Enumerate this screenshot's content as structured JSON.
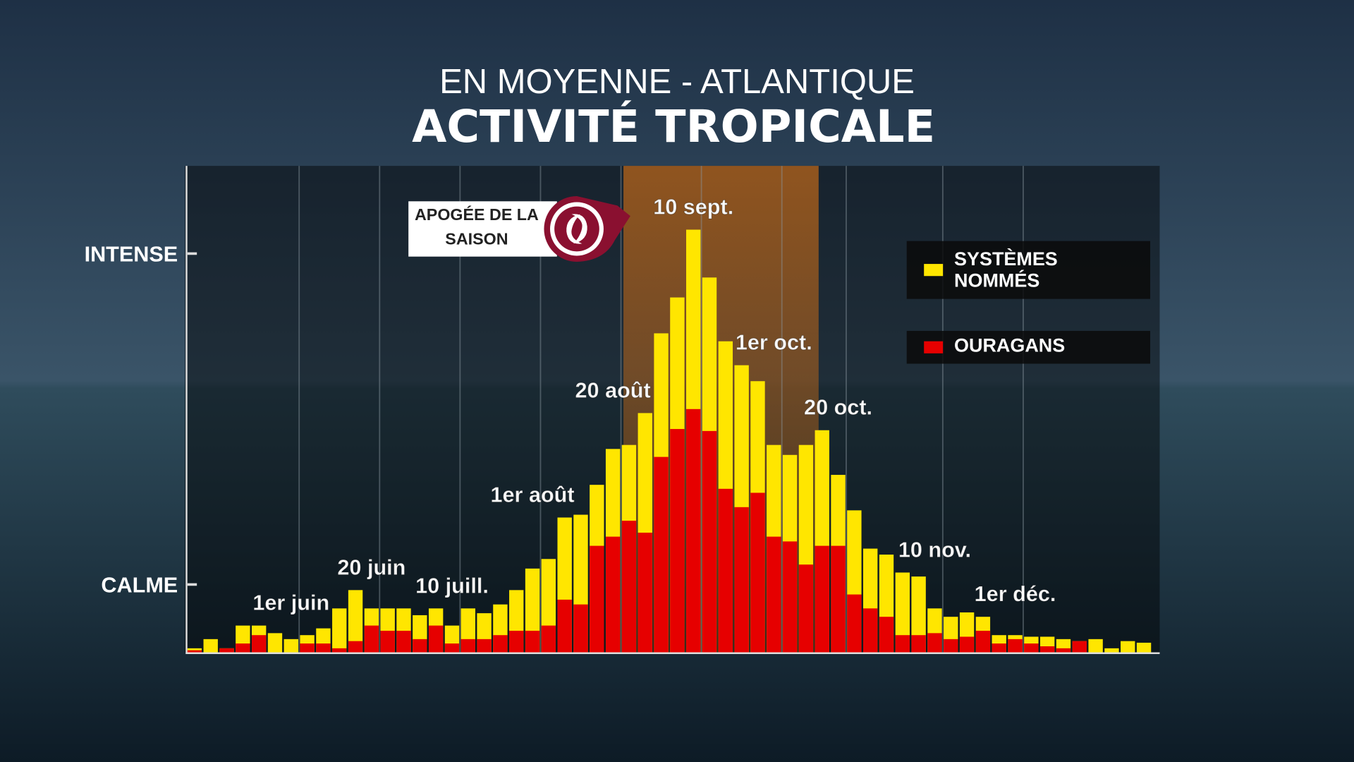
{
  "chart_data": {
    "type": "bar",
    "subtitle": "EN MOYENNE - ATLANTIQUE",
    "title": "ACTIVITÉ TROPICALE",
    "annotation": "APOGÉE DE LA SAISON",
    "categories": [
      null,
      null,
      null,
      null,
      null,
      null,
      "1er juin",
      null,
      null,
      null,
      null,
      "20 juin",
      null,
      null,
      null,
      null,
      "10 juill.",
      null,
      null,
      null,
      null,
      "1er août",
      null,
      null,
      null,
      null,
      "20 août",
      null,
      null,
      null,
      null,
      "10 sept.",
      null,
      null,
      null,
      null,
      "1er oct.",
      null,
      null,
      null,
      "20 oct.",
      null,
      null,
      null,
      null,
      null,
      "10 nov.",
      null,
      null,
      null,
      null,
      "1er déc.",
      null,
      null,
      null,
      null,
      null,
      null,
      null,
      null
    ],
    "series": [
      {
        "name": "SYSTÈMES NOMMÉS",
        "color": "#ffe600",
        "values": [
          1,
          3.3,
          1,
          6.7,
          6.7,
          4.8,
          3.3,
          4.3,
          6,
          11,
          15.6,
          11,
          11,
          11,
          9.3,
          11,
          6.7,
          11,
          9.8,
          12,
          15.6,
          21,
          23.4,
          33.8,
          34.5,
          42,
          51,
          52,
          60,
          80,
          89,
          106,
          94,
          78,
          72,
          68,
          52,
          49.5,
          52,
          55.7,
          44.5,
          35.6,
          26,
          24.5,
          20,
          19,
          11,
          8.9,
          10,
          8.9,
          4.3,
          4.3,
          3.9,
          3.9,
          3.3,
          2.8,
          3.3,
          1,
          2.8,
          2.4
        ]
      },
      {
        "name": "OURAGANS",
        "color": "#e60000",
        "values": [
          0.5,
          0,
          1,
          2.2,
          4.3,
          0,
          0,
          2.2,
          2.2,
          1,
          2.8,
          6.7,
          5.4,
          5.4,
          3.3,
          6.7,
          2.2,
          3.3,
          3.3,
          4.3,
          5.4,
          5.4,
          6.7,
          13.2,
          12,
          26.7,
          29,
          33,
          30,
          49,
          56,
          61,
          55.5,
          41,
          36.4,
          40,
          29,
          27.8,
          22,
          26.7,
          26.7,
          14.5,
          11,
          8.9,
          4.3,
          4.3,
          4.8,
          3.3,
          3.9,
          5.4,
          2.2,
          3.3,
          2.2,
          1.5,
          1,
          2.8,
          0,
          0,
          0,
          0
        ]
      }
    ],
    "ylim": [
      0,
      122
    ],
    "yticks": [
      {
        "value": 17,
        "label": "CALME"
      },
      {
        "value": 100,
        "label": "INTENSE"
      }
    ],
    "grid": true
  }
}
